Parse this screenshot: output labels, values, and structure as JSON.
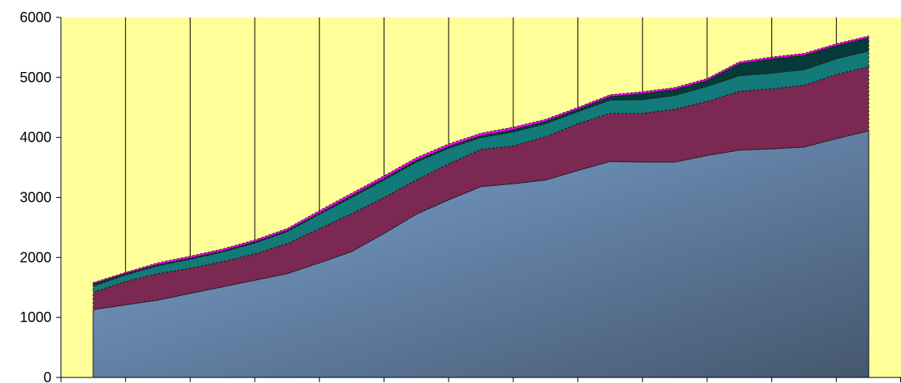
{
  "chart_data": {
    "type": "area",
    "stacked": true,
    "title": "",
    "xlabel": "",
    "ylabel": "",
    "ylim": [
      0,
      6000
    ],
    "yticks": [
      0,
      1000,
      2000,
      3000,
      4000,
      5000,
      6000
    ],
    "ytick_labels": [
      "0",
      "1000",
      "2000",
      "3000",
      "4000",
      "5000",
      "6000"
    ],
    "categories": [
      "",
      "",
      "",
      "",
      "",
      "",
      "",
      "",
      "",
      "",
      "",
      "",
      ""
    ],
    "grid": {
      "vertical": true,
      "horizontal": false
    },
    "legend": "none",
    "plot_background": "#ffff99",
    "x": [
      0,
      0.5,
      1,
      1.5,
      2,
      2.5,
      3,
      3.5,
      4,
      4.5,
      5,
      5.5,
      6,
      6.5,
      7,
      7.5,
      8,
      8.5,
      9,
      9.5,
      10,
      10.5,
      11,
      11.5,
      12
    ],
    "series": [
      {
        "color": "#7ea8d8",
        "color_dark": "#45576e",
        "values": [
          1130,
          1210,
          1290,
          1400,
          1510,
          1620,
          1730,
          1910,
          2100,
          2400,
          2720,
          2960,
          3180,
          3230,
          3290,
          3450,
          3600,
          3590,
          3590,
          3700,
          3790,
          3810,
          3840,
          3980,
          4110
        ]
      },
      {
        "color": "#7b2852",
        "values": [
          290,
          390,
          440,
          420,
          420,
          440,
          500,
          570,
          630,
          600,
          570,
          600,
          620,
          630,
          720,
          780,
          800,
          810,
          880,
          900,
          980,
          1000,
          1030,
          1070,
          1070
        ]
      },
      {
        "color": "#127a78",
        "values": [
          100,
          110,
          130,
          150,
          160,
          180,
          200,
          240,
          270,
          290,
          300,
          260,
          200,
          230,
          220,
          200,
          220,
          230,
          230,
          250,
          260,
          260,
          260,
          260,
          260
        ]
      },
      {
        "color": "#063a3a",
        "values": [
          40,
          20,
          20,
          20,
          20,
          20,
          20,
          20,
          30,
          30,
          30,
          30,
          30,
          40,
          40,
          40,
          60,
          100,
          100,
          100,
          200,
          240,
          240,
          220,
          220
        ]
      },
      {
        "color": "#ff00ff",
        "values": [
          20,
          20,
          30,
          30,
          30,
          30,
          30,
          40,
          40,
          40,
          40,
          40,
          40,
          40,
          30,
          30,
          30,
          30,
          30,
          30,
          30,
          30,
          30,
          30,
          30
        ]
      }
    ]
  }
}
